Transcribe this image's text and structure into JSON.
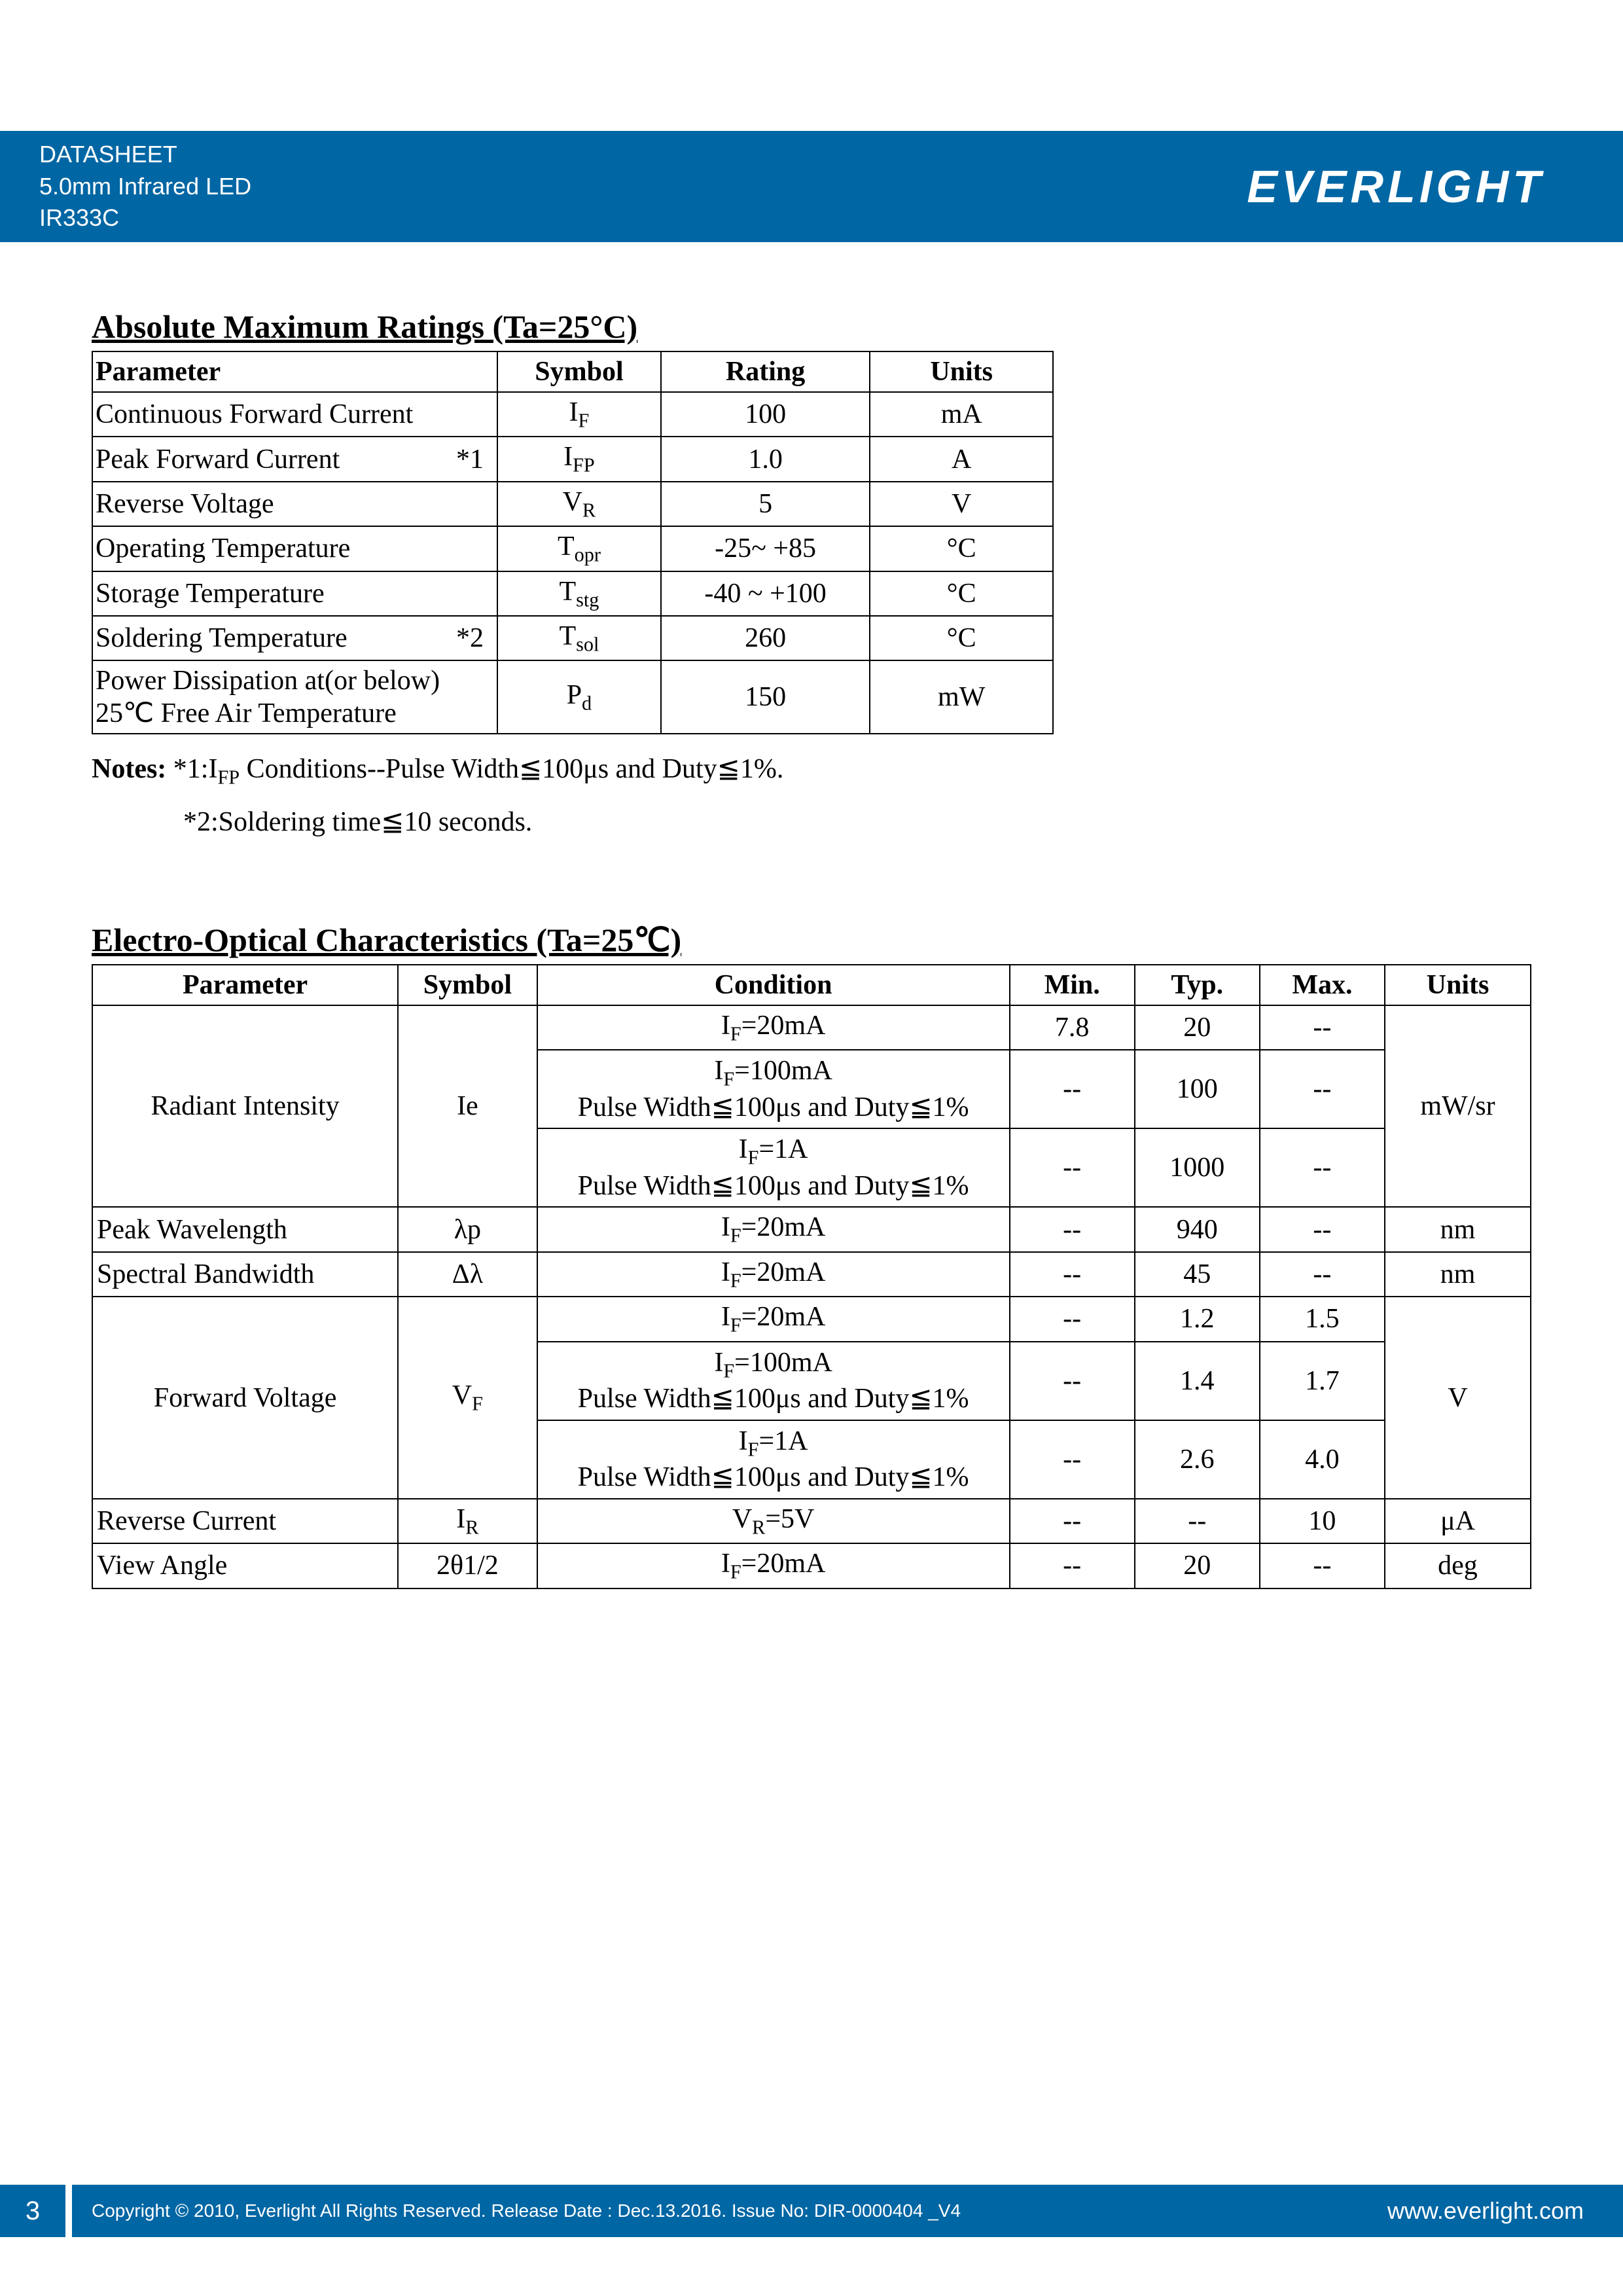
{
  "colors": {
    "brand_blue": "#0066a4",
    "text": "#000000",
    "white": "#ffffff",
    "border": "#000000"
  },
  "typography": {
    "body_font": "Times New Roman",
    "header_font": "Arial",
    "title_fontsize_pt": 18,
    "table_fontsize_pt": 15
  },
  "header": {
    "line1": "DATASHEET",
    "line2": "5.0mm Infrared LED",
    "line3": "IR333C",
    "logo_text": "EVERLIGHT"
  },
  "sectionA": {
    "title": "Absolute Maximum Ratings (Ta=25°C)",
    "columns": [
      "Parameter",
      "Symbol",
      "Rating",
      "Units"
    ],
    "rows": [
      {
        "parameter": "Continuous Forward Current",
        "star": "",
        "symbol_main": "I",
        "symbol_sub": "F",
        "rating": "100",
        "units": "mA"
      },
      {
        "parameter": "Peak Forward Current",
        "star": "*1",
        "symbol_main": "I",
        "symbol_sub": "FP",
        "rating": "1.0",
        "units": "A"
      },
      {
        "parameter": "Reverse Voltage",
        "star": "",
        "symbol_main": "V",
        "symbol_sub": "R",
        "rating": "5",
        "units": "V"
      },
      {
        "parameter": "Operating Temperature",
        "star": "",
        "symbol_main": "T",
        "symbol_sub": "opr",
        "rating": "-25~ +85",
        "units": "°C"
      },
      {
        "parameter": "Storage Temperature",
        "star": "",
        "symbol_main": "T",
        "symbol_sub": "stg",
        "rating": "-40 ~ +100",
        "units": "°C"
      },
      {
        "parameter": "Soldering Temperature",
        "star": "*2",
        "symbol_main": "T",
        "symbol_sub": "sol",
        "rating": "260",
        "units": "°C"
      },
      {
        "parameter": "Power Dissipation at(or below) 25℃ Free Air Temperature",
        "star": "",
        "symbol_main": "P",
        "symbol_sub": "d",
        "rating": "150",
        "units": "mW"
      }
    ],
    "notes_label": "Notes:",
    "note1": "*1:I",
    "note1_sub": "FP",
    "note1_rest": " Conditions--Pulse Width≦100μs and Duty≦1%.",
    "note2": "*2:Soldering time≦10 seconds."
  },
  "sectionB": {
    "title": "Electro-Optical Characteristics (Ta=25℃)",
    "columns": [
      "Parameter",
      "Symbol",
      "Condition",
      "Min.",
      "Typ.",
      "Max.",
      "Units"
    ],
    "groups": [
      {
        "parameter": "Radiant Intensity",
        "symbol": "Ie",
        "units": "mW/sr",
        "rows": [
          {
            "cond1": "I",
            "cond1_sub": "F",
            "cond1_rest": "=20mA",
            "cond2": "",
            "min": "7.8",
            "typ": "20",
            "max": "--"
          },
          {
            "cond1": "I",
            "cond1_sub": "F",
            "cond1_rest": "=100mA",
            "cond2": "Pulse Width≦100μs and Duty≦1%",
            "min": "--",
            "typ": "100",
            "max": "--"
          },
          {
            "cond1": "I",
            "cond1_sub": "F",
            "cond1_rest": "=1A",
            "cond2": "Pulse Width≦100μs and Duty≦1%",
            "min": "--",
            "typ": "1000",
            "max": "--"
          }
        ]
      },
      {
        "parameter": "Peak Wavelength",
        "parameter_align": "left",
        "symbol": "λp",
        "units": "nm",
        "rows": [
          {
            "cond1": "I",
            "cond1_sub": "F",
            "cond1_rest": "=20mA",
            "cond2": "",
            "min": "--",
            "typ": "940",
            "max": "--"
          }
        ]
      },
      {
        "parameter": "Spectral Bandwidth",
        "parameter_align": "left",
        "symbol": "Δλ",
        "units": "nm",
        "rows": [
          {
            "cond1": "I",
            "cond1_sub": "F",
            "cond1_rest": "=20mA",
            "cond2": "",
            "min": "--",
            "typ": "45",
            "max": "--"
          }
        ]
      },
      {
        "parameter": "Forward Voltage",
        "symbol_main": "V",
        "symbol_sub": "F",
        "units": "V",
        "rows": [
          {
            "cond1": "I",
            "cond1_sub": "F",
            "cond1_rest": "=20mA",
            "cond2": "",
            "min": "--",
            "typ": "1.2",
            "max": "1.5"
          },
          {
            "cond1": "I",
            "cond1_sub": "F",
            "cond1_rest": "=100mA",
            "cond2": "Pulse Width≦100μs and Duty≦1%",
            "min": "--",
            "typ": "1.4",
            "max": "1.7"
          },
          {
            "cond1": "I",
            "cond1_sub": "F",
            "cond1_rest": "=1A",
            "cond2": "Pulse Width≦100μs and Duty≦1%",
            "min": "--",
            "typ": "2.6",
            "max": "4.0"
          }
        ]
      },
      {
        "parameter": "Reverse Current",
        "parameter_align": "left",
        "symbol_main": "I",
        "symbol_sub": "R",
        "units": "μA",
        "rows": [
          {
            "cond1": "V",
            "cond1_sub": "R",
            "cond1_rest": "=5V",
            "cond2": "",
            "min": "--",
            "typ": "--",
            "max": "10"
          }
        ]
      },
      {
        "parameter": "View Angle",
        "parameter_align": "left",
        "symbol": "2θ1/2",
        "units": "deg",
        "rows": [
          {
            "cond1": "I",
            "cond1_sub": "F",
            "cond1_rest": "=20mA",
            "cond2": "",
            "min": "--",
            "typ": "20",
            "max": "--"
          }
        ]
      }
    ]
  },
  "footer": {
    "page": "3",
    "copyright": "Copyright © 2010, Everlight All Rights Reserved. Release Date : Dec.13.2016. Issue No: DIR-0000404   _V4",
    "url": "www.everlight.com"
  }
}
